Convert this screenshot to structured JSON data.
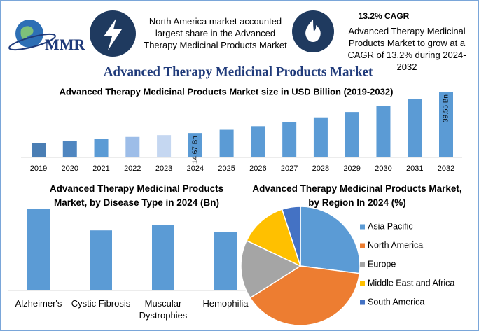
{
  "header": {
    "logo": "MMR",
    "highlight": "North America market accounted largest share in the Advanced Therapy Medicinal Products Market",
    "cagr_title": "13.2% CAGR",
    "cagr_text": "Advanced Therapy Medicinal Products Market to grow at a CAGR of 13.2% during 2024-2032"
  },
  "title": "Advanced Therapy Medicinal Products Market",
  "chart_data": [
    {
      "type": "bar",
      "title": "Advanced Therapy Medicinal Products Market size in USD Billion (2019-2032)",
      "categories": [
        "2019",
        "2020",
        "2021",
        "2022",
        "2023",
        "2024",
        "2025",
        "2026",
        "2027",
        "2028",
        "2029",
        "2030",
        "2031",
        "2032"
      ],
      "values": [
        8.7,
        9.8,
        11.0,
        12.3,
        13.4,
        14.67,
        16.6,
        18.8,
        21.3,
        24.1,
        27.3,
        30.9,
        35.0,
        39.55
      ],
      "value_labels": [
        null,
        null,
        null,
        null,
        null,
        "14.67 Bn",
        null,
        null,
        null,
        null,
        null,
        null,
        null,
        "39.55 Bn"
      ],
      "colors": [
        "#4a7eb4",
        "#4f86c0",
        "#5b9bd5",
        "#9dbde8",
        "#c5d7f1",
        "#5b9bd5",
        "#5b9bd5",
        "#5b9bd5",
        "#5b9bd5",
        "#5b9bd5",
        "#5b9bd5",
        "#5b9bd5",
        "#5b9bd5",
        "#5b9bd5"
      ]
    },
    {
      "type": "bar",
      "title": "Advanced Therapy Medicinal Products Market, by Disease Type in 2024 (Bn)",
      "categories": [
        "Alzheimer's",
        "Cystic Fibrosis",
        "Muscular Dystrophies",
        "Hemophilia"
      ],
      "values": [
        4.5,
        3.3,
        3.6,
        3.2
      ],
      "color": "#5b9bd5"
    },
    {
      "type": "pie",
      "title": "Advanced Therapy Medicinal Products Market, by Region In 2024 (%)",
      "categories": [
        "Asia Pacific",
        "North America",
        "Europe",
        "Middle East and Africa",
        "South America"
      ],
      "values": [
        27,
        39,
        16,
        13,
        5
      ],
      "colors": [
        "#5b9bd5",
        "#ed7d31",
        "#a5a5a5",
        "#ffc000",
        "#4472c4"
      ],
      "legend": "right"
    }
  ]
}
